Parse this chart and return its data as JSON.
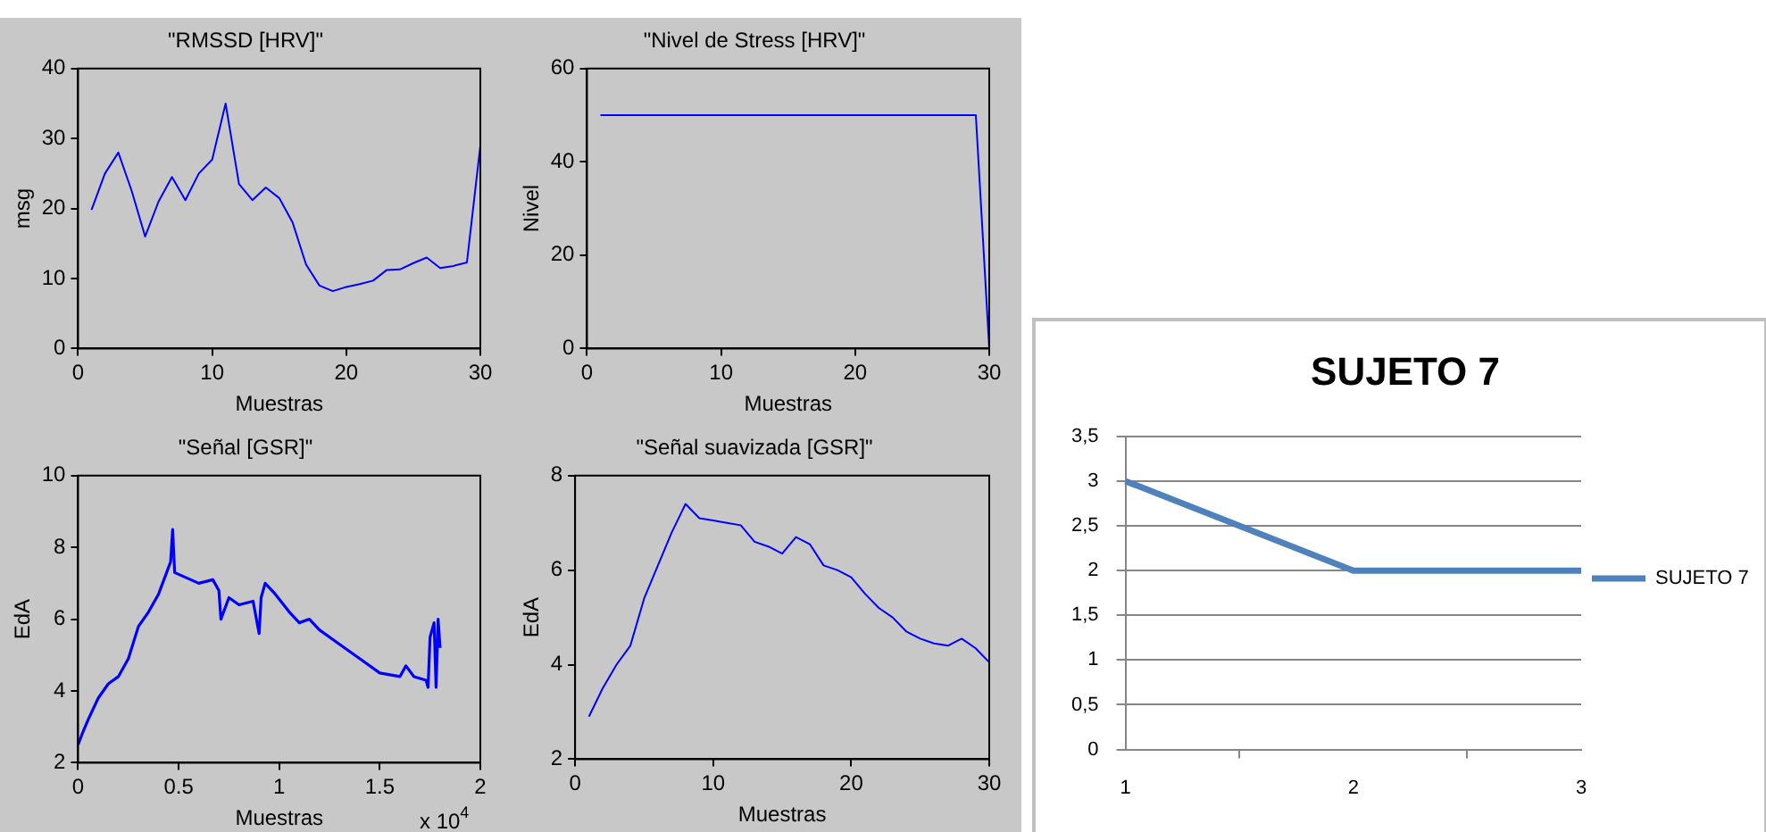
{
  "chart_data": [
    {
      "type": "line",
      "title": "\"RMSSD [HRV]\"",
      "xlabel": "Muestras",
      "ylabel": "msg",
      "x": [
        1,
        2,
        3,
        4,
        5,
        6,
        7,
        8,
        9,
        10,
        11,
        12,
        13,
        14,
        15,
        16,
        17,
        18,
        19,
        20,
        21,
        22,
        23,
        24,
        25,
        26,
        27,
        28,
        29,
        30
      ],
      "series": [
        {
          "color": "#0000ff",
          "values": [
            19.8,
            25,
            28,
            22.5,
            16,
            21,
            24.5,
            21.2,
            25,
            27,
            35,
            23.5,
            21.2,
            23,
            21.5,
            18,
            12,
            9,
            8.2,
            8.8,
            9.2,
            9.7,
            11.2,
            11.3,
            12.2,
            13,
            11.5,
            11.8,
            12.3,
            29
          ]
        }
      ],
      "xlim": [
        0,
        30
      ],
      "xticks": [
        0,
        10,
        20,
        30
      ],
      "ylim": [
        0,
        40
      ],
      "yticks": [
        0,
        10,
        20,
        30,
        40
      ],
      "grid": false,
      "legend": false
    },
    {
      "type": "line",
      "title": "\"Nivel de Stress [HRV]\"",
      "xlabel": "Muestras",
      "ylabel": "Nivel",
      "x": [
        1,
        2,
        3,
        4,
        5,
        6,
        7,
        8,
        9,
        10,
        11,
        12,
        13,
        14,
        15,
        16,
        17,
        18,
        19,
        20,
        21,
        22,
        23,
        24,
        25,
        26,
        27,
        28,
        29,
        30
      ],
      "series": [
        {
          "color": "#0000ff",
          "values": [
            50,
            50,
            50,
            50,
            50,
            50,
            50,
            50,
            50,
            50,
            50,
            50,
            50,
            50,
            50,
            50,
            50,
            50,
            50,
            50,
            50,
            50,
            50,
            50,
            50,
            50,
            50,
            50,
            50,
            0
          ]
        }
      ],
      "xlim": [
        0,
        30
      ],
      "xticks": [
        0,
        10,
        20,
        30
      ],
      "ylim": [
        0,
        60
      ],
      "yticks": [
        0,
        20,
        40,
        60
      ],
      "grid": false,
      "legend": false
    },
    {
      "type": "line",
      "title": "\"Señal [GSR]\"",
      "xlabel": "Muestras",
      "ylabel": "EdA",
      "annotations": [
        "x 10$^{4}$"
      ],
      "x": [
        0,
        0.02,
        0.05,
        0.1,
        0.15,
        0.2,
        0.25,
        0.3,
        0.35,
        0.4,
        0.44,
        0.46,
        0.47,
        0.48,
        0.52,
        0.6,
        0.67,
        0.7,
        0.71,
        0.75,
        0.8,
        0.87,
        0.9,
        0.91,
        0.93,
        0.98,
        1.05,
        1.1,
        1.15,
        1.2,
        1.3,
        1.4,
        1.5,
        1.6,
        1.63,
        1.67,
        1.73,
        1.74,
        1.75,
        1.77,
        1.78,
        1.79,
        1.8
      ],
      "series": [
        {
          "color": "#0000ff",
          "values": [
            2.5,
            2.8,
            3.2,
            3.8,
            4.2,
            4.4,
            4.9,
            5.8,
            6.2,
            6.7,
            7.3,
            7.6,
            8.5,
            7.3,
            7.2,
            7.0,
            7.1,
            6.8,
            6.0,
            6.6,
            6.4,
            6.5,
            5.6,
            6.6,
            7.0,
            6.7,
            6.2,
            5.9,
            6.0,
            5.7,
            5.3,
            4.9,
            4.5,
            4.4,
            4.7,
            4.4,
            4.3,
            4.1,
            5.5,
            5.9,
            4.1,
            6.0,
            5.2
          ]
        }
      ],
      "xlim": [
        0,
        2
      ],
      "xticks": [
        0,
        0.5,
        1,
        1.5,
        2
      ],
      "ylim": [
        2,
        10
      ],
      "yticks": [
        2,
        4,
        6,
        8,
        10
      ],
      "grid": false,
      "legend": false
    },
    {
      "type": "line",
      "title": "\"Señal suavizada [GSR]\"",
      "xlabel": "Muestras",
      "ylabel": "EdA",
      "x": [
        1,
        2,
        3,
        4,
        5,
        6,
        7,
        8,
        9,
        10,
        11,
        12,
        13,
        14,
        15,
        16,
        17,
        18,
        19,
        20,
        21,
        22,
        23,
        24,
        25,
        26,
        27,
        28,
        29,
        30
      ],
      "series": [
        {
          "color": "#0000ff",
          "values": [
            2.9,
            3.5,
            4.0,
            4.4,
            5.4,
            6.1,
            6.8,
            7.4,
            7.1,
            7.05,
            7.0,
            6.95,
            6.6,
            6.5,
            6.35,
            6.7,
            6.55,
            6.1,
            6.0,
            5.85,
            5.5,
            5.2,
            5.0,
            4.7,
            4.55,
            4.45,
            4.4,
            4.55,
            4.35,
            4.05
          ]
        }
      ],
      "xlim": [
        0,
        30
      ],
      "xticks": [
        0,
        10,
        20,
        30
      ],
      "ylim": [
        2,
        8
      ],
      "yticks": [
        2,
        4,
        6,
        8
      ],
      "grid": false,
      "legend": false
    },
    {
      "type": "line",
      "title": "SUJETO 7",
      "categories": [
        "1",
        "2",
        "3"
      ],
      "series": [
        {
          "name": "SUJETO 7",
          "color": "#4f81bd",
          "values": [
            3,
            2,
            2
          ]
        }
      ],
      "ylim": [
        0,
        3.5
      ],
      "yticks": [
        0,
        {
          "value": 0.5,
          "label": "0,5"
        },
        1,
        {
          "value": 1.5,
          "label": "1,5"
        },
        2,
        {
          "value": 2.5,
          "label": "2,5"
        },
        3,
        {
          "value": 3.5,
          "label": "3,5"
        }
      ],
      "grid": "y",
      "legend": "right"
    }
  ]
}
